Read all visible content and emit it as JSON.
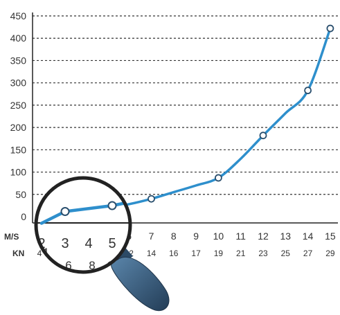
{
  "chart_data": {
    "type": "line",
    "x_ms": [
      "2",
      "3",
      "4",
      "5",
      "6",
      "7",
      "8",
      "9",
      "10",
      "11",
      "12",
      "13",
      "14",
      "15"
    ],
    "x_kn": [
      "4",
      "6",
      "8",
      "10",
      "12",
      "14",
      "16",
      "17",
      "19",
      "21",
      "23",
      "25",
      "27",
      "29"
    ],
    "x_row_labels": {
      "ms": "M/S",
      "kn": "KN"
    },
    "yticks": [
      "0",
      "50",
      "100",
      "150",
      "200",
      "250",
      "300",
      "350",
      "400",
      "450"
    ],
    "ylim": [
      0,
      460
    ],
    "curve": [
      {
        "x": 2,
        "y": -10
      },
      {
        "x": 3,
        "y": 10
      },
      {
        "x": 4,
        "y": 15
      },
      {
        "x": 5,
        "y": 20
      },
      {
        "x": 6,
        "y": 28
      },
      {
        "x": 7,
        "y": 40
      },
      {
        "x": 8,
        "y": 55
      },
      {
        "x": 9,
        "y": 70
      },
      {
        "x": 10,
        "y": 87
      },
      {
        "x": 11,
        "y": 130
      },
      {
        "x": 12,
        "y": 182
      },
      {
        "x": 13,
        "y": 232
      },
      {
        "x": 14,
        "y": 283
      },
      {
        "x": 15,
        "y": 422
      }
    ],
    "markers": [
      {
        "x": 3,
        "y": 10
      },
      {
        "x": 5,
        "y": 20
      },
      {
        "x": 7,
        "y": 40
      },
      {
        "x": 10,
        "y": 87
      },
      {
        "x": 12,
        "y": 182
      },
      {
        "x": 14,
        "y": 283
      },
      {
        "x": 15,
        "y": 422
      }
    ],
    "grid": true,
    "colors": {
      "line": "#2e8fcc",
      "grid": "#333333",
      "axis": "#222222",
      "handle": "#3a5f80"
    }
  }
}
